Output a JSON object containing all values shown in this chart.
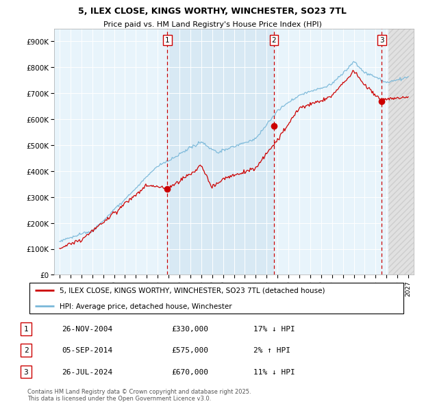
{
  "title": "5, ILEX CLOSE, KINGS WORTHY, WINCHESTER, SO23 7TL",
  "subtitle": "Price paid vs. HM Land Registry's House Price Index (HPI)",
  "xlim": [
    1994.5,
    2027.5
  ],
  "ylim": [
    0,
    950000
  ],
  "yticks": [
    0,
    100000,
    200000,
    300000,
    400000,
    500000,
    600000,
    700000,
    800000,
    900000
  ],
  "ytick_labels": [
    "£0",
    "£100K",
    "£200K",
    "£300K",
    "£400K",
    "£500K",
    "£600K",
    "£700K",
    "£800K",
    "£900K"
  ],
  "xticks": [
    1995,
    1996,
    1997,
    1998,
    1999,
    2000,
    2001,
    2002,
    2003,
    2004,
    2005,
    2006,
    2007,
    2008,
    2009,
    2010,
    2011,
    2012,
    2013,
    2014,
    2015,
    2016,
    2017,
    2018,
    2019,
    2020,
    2021,
    2022,
    2023,
    2024,
    2025,
    2026,
    2027
  ],
  "hpi_color": "#7ab8d9",
  "price_color": "#cc0000",
  "vline_color": "#cc0000",
  "marker_color": "#cc0000",
  "shade_color": "#cce0f0",
  "trans_years": [
    2004.9,
    2014.67,
    2024.57
  ],
  "trans_prices": [
    330000,
    575000,
    670000
  ],
  "trans_labels": [
    "1",
    "2",
    "3"
  ],
  "legend_red_label": "5, ILEX CLOSE, KINGS WORTHY, WINCHESTER, SO23 7TL (detached house)",
  "legend_blue_label": "HPI: Average price, detached house, Winchester",
  "table": [
    {
      "num": "1",
      "date": "26-NOV-2004",
      "price": "£330,000",
      "hpi": "17% ↓ HPI"
    },
    {
      "num": "2",
      "date": "05-SEP-2014",
      "price": "£575,000",
      "hpi": "2% ↑ HPI"
    },
    {
      "num": "3",
      "date": "26-JUL-2024",
      "price": "£670,000",
      "hpi": "11% ↓ HPI"
    }
  ],
  "footer": "Contains HM Land Registry data © Crown copyright and database right 2025.\nThis data is licensed under the Open Government Licence v3.0.",
  "bg_color": "#e8f4fb",
  "fig_bg": "#ffffff"
}
